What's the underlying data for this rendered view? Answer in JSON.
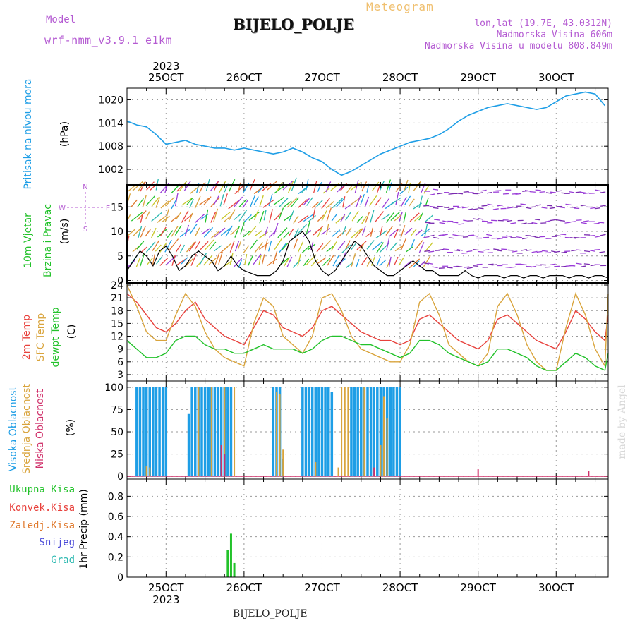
{
  "header": {
    "model_label": "Model",
    "model_name": "wrf-nmm_v3.9.1 e1km",
    "station": "BIJELO_POLJE",
    "meteogram": "Meteogram",
    "lonlat": "lon,lat (19.7E, 43.0312N)",
    "elevation": "Nadmorska Visina 606m",
    "model_elevation": "Nadmorska Visina u modelu 808.849m"
  },
  "footer": {
    "station": "BIJELO_POLJE",
    "credit": "made by Angel"
  },
  "colors": {
    "pressure": "#1e9ee6",
    "t2m": "#e8413c",
    "sfc": "#d9a43c",
    "dewpt": "#22c22a",
    "high_cloud": "#1e9ee6",
    "mid_cloud": "#d9a43c",
    "low_cloud": "#d0306a",
    "precip": "#22c22a",
    "wind_speed": "#000000",
    "label_purple": "#b45ad2"
  },
  "chart_data": [
    {
      "type": "line",
      "panel": "pressure",
      "ylabel_colored": "Pritisak na nivou mora",
      "ylabel_unit": "(hPa)",
      "x_ticks": [
        "25OCT",
        "26OCT",
        "27OCT",
        "28OCT",
        "29OCT",
        "30OCT"
      ],
      "x_top_year": "2023",
      "x_bottom_year": "2023",
      "x_range_hours": [
        -12,
        136
      ],
      "y_ticks": [
        1002,
        1008,
        1014,
        1020
      ],
      "ylim": [
        998,
        1023
      ],
      "series": [
        {
          "name": "",
          "x": [
            -12,
            -9,
            -6,
            -3,
            0,
            3,
            6,
            9,
            12,
            15,
            18,
            21,
            24,
            27,
            30,
            33,
            36,
            39,
            42,
            45,
            48,
            51,
            54,
            57,
            60,
            63,
            66,
            69,
            72,
            75,
            78,
            81,
            84,
            87,
            90,
            93,
            96,
            99,
            102,
            105,
            108,
            111,
            114,
            117,
            120,
            123,
            126,
            129,
            132,
            135
          ],
          "values": [
            1014.5,
            1013.5,
            1013,
            1011,
            1008.5,
            1009,
            1009.5,
            1008.5,
            1008,
            1007.5,
            1007.5,
            1007,
            1007.5,
            1007,
            1006.5,
            1006,
            1006.5,
            1007.5,
            1006.5,
            1005,
            1004,
            1002,
            1000.5,
            1001.5,
            1003,
            1004.5,
            1006,
            1007,
            1008,
            1009,
            1009.5,
            1010,
            1011,
            1012.5,
            1014.5,
            1016,
            1017,
            1018,
            1018.5,
            1019,
            1018.5,
            1018,
            1017.5,
            1018,
            1019.5,
            1021,
            1021.5,
            1022,
            1021.5,
            1018.5
          ]
        }
      ]
    },
    {
      "type": "line",
      "panel": "wind",
      "ylabel_colored_1": "10m Vjetar",
      "ylabel_colored_2": "Brzina i Pravac",
      "ylabel_unit": "(m/s)",
      "compass": [
        "N",
        "E",
        "S",
        "W"
      ],
      "y_ticks": [
        0,
        5,
        10,
        15
      ],
      "ylim": [
        -0.5,
        19.5
      ],
      "series": [
        {
          "name": "",
          "x": [
            -12,
            -10,
            -8,
            -6,
            -4,
            -2,
            0,
            2,
            4,
            6,
            8,
            10,
            12,
            14,
            16,
            18,
            20,
            22,
            24,
            26,
            28,
            30,
            32,
            34,
            36,
            38,
            40,
            42,
            44,
            46,
            48,
            50,
            52,
            54,
            56,
            58,
            60,
            62,
            64,
            66,
            68,
            70,
            72,
            74,
            76,
            78,
            80,
            82,
            84,
            86,
            88,
            90,
            92,
            94,
            96,
            98,
            100,
            102,
            104,
            106,
            108,
            110,
            112,
            114,
            116,
            118,
            120,
            122,
            124,
            126,
            128,
            130,
            132,
            134,
            136
          ],
          "values": [
            2,
            4,
            6,
            5,
            3,
            6,
            7,
            5,
            2,
            3,
            5,
            6,
            5,
            4,
            2,
            3,
            5,
            3,
            2,
            1.5,
            1,
            1,
            1,
            2,
            4,
            8,
            9,
            10,
            8,
            4,
            2,
            1,
            2,
            4,
            6,
            8,
            7,
            5,
            3,
            2,
            1,
            1,
            2,
            3,
            4,
            3,
            2,
            2,
            1,
            1,
            1,
            1,
            2,
            1,
            0.5,
            1,
            1,
            1,
            0.5,
            1,
            1,
            0.5,
            1,
            1,
            0.5,
            1,
            1,
            1,
            0.5,
            1,
            1,
            0.5,
            1,
            1,
            0.5
          ]
        }
      ]
    },
    {
      "type": "line",
      "panel": "temperature",
      "ylabel_1": "2m Temp",
      "ylabel_2": "SFC Temp",
      "ylabel_3": "dewpt Temp",
      "ylabel_unit": "(C)",
      "y_ticks": [
        3,
        6,
        9,
        12,
        15,
        18,
        21,
        24
      ],
      "ylim": [
        1.5,
        24.5
      ],
      "series": [
        {
          "name": "2m Temp",
          "x": [
            -12,
            -9,
            -6,
            -3,
            0,
            3,
            6,
            9,
            12,
            15,
            18,
            21,
            24,
            27,
            30,
            33,
            36,
            39,
            42,
            45,
            48,
            51,
            54,
            57,
            60,
            63,
            66,
            69,
            72,
            75,
            78,
            81,
            84,
            87,
            90,
            93,
            96,
            99,
            102,
            105,
            108,
            111,
            114,
            117,
            120,
            123,
            126,
            129,
            132,
            135,
            136
          ],
          "values": [
            22,
            20,
            17,
            14,
            13,
            15,
            18,
            20,
            16,
            14,
            12,
            11,
            10,
            14,
            18,
            17,
            14,
            13,
            12,
            14,
            18,
            19,
            17,
            15,
            13,
            12,
            11,
            11,
            10,
            11,
            16,
            17,
            15,
            13,
            11,
            10,
            9,
            11,
            16,
            17,
            15,
            13,
            11,
            10,
            9,
            13,
            18,
            16,
            13,
            11,
            17
          ]
        },
        {
          "name": "SFC Temp",
          "x": [
            -12,
            -9,
            -6,
            -3,
            0,
            3,
            6,
            9,
            12,
            15,
            18,
            21,
            24,
            27,
            30,
            33,
            36,
            39,
            42,
            45,
            48,
            51,
            54,
            57,
            60,
            63,
            66,
            69,
            72,
            75,
            78,
            81,
            84,
            87,
            90,
            93,
            96,
            99,
            102,
            105,
            108,
            111,
            114,
            117,
            120,
            123,
            126,
            129,
            132,
            135,
            136
          ],
          "values": [
            24,
            19,
            13,
            11,
            11,
            17,
            22,
            19,
            13,
            9,
            7,
            6,
            5,
            15,
            21,
            19,
            12,
            10,
            8,
            12,
            21,
            22,
            18,
            12,
            9,
            8,
            7,
            6,
            6,
            10,
            20,
            22,
            17,
            10,
            8,
            6,
            5,
            8,
            19,
            22,
            17,
            10,
            6,
            4,
            4,
            14,
            22,
            17,
            9,
            5,
            22
          ]
        },
        {
          "name": "dewpt Temp",
          "x": [
            -12,
            -9,
            -6,
            -3,
            0,
            3,
            6,
            9,
            12,
            15,
            18,
            21,
            24,
            27,
            30,
            33,
            36,
            39,
            42,
            45,
            48,
            51,
            54,
            57,
            60,
            63,
            66,
            69,
            72,
            75,
            78,
            81,
            84,
            87,
            90,
            93,
            96,
            99,
            102,
            105,
            108,
            111,
            114,
            117,
            120,
            123,
            126,
            129,
            132,
            135,
            136
          ],
          "values": [
            11,
            9,
            7,
            7,
            8,
            11,
            12,
            12,
            10,
            9,
            9,
            8,
            8,
            9,
            10,
            9,
            9,
            9,
            8,
            9,
            11,
            12,
            12,
            11,
            10,
            10,
            9,
            8,
            7,
            8,
            11,
            11,
            10,
            8,
            7,
            6,
            5,
            6,
            9,
            9,
            8,
            7,
            5,
            4,
            4,
            6,
            8,
            7,
            5,
            4,
            8
          ]
        }
      ]
    },
    {
      "type": "bar",
      "panel": "cloud",
      "ylabel_1": "Visoka Oblacnost",
      "ylabel_2": "Srednja Oblacnost",
      "ylabel_3": "Niska Oblacnost",
      "ylabel_unit": "(%)",
      "y_ticks": [
        0,
        25,
        50,
        75,
        100
      ],
      "ylim": [
        -3,
        107
      ],
      "series": [
        {
          "name": "Visoka Oblacnost",
          "x": [
            -9,
            -8,
            -7,
            -6,
            -5,
            -4,
            -3,
            -2,
            -1,
            0,
            7,
            8,
            9,
            10,
            11,
            12,
            13,
            14,
            15,
            16,
            17,
            18,
            19,
            20,
            22,
            23,
            24,
            33,
            34,
            35,
            36,
            42,
            43,
            44,
            45,
            46,
            47,
            48,
            49,
            50,
            51,
            52,
            57,
            58,
            59,
            60,
            61,
            62,
            63,
            64,
            65,
            66,
            67,
            68,
            69,
            70,
            71,
            72
          ],
          "values": [
            100,
            100,
            100,
            100,
            100,
            100,
            100,
            100,
            100,
            100,
            70,
            100,
            100,
            100,
            100,
            100,
            100,
            100,
            100,
            100,
            100,
            100,
            100,
            100,
            0,
            0,
            0,
            100,
            100,
            100,
            20,
            100,
            100,
            100,
            100,
            100,
            100,
            100,
            100,
            100,
            95,
            0,
            100,
            100,
            100,
            100,
            100,
            100,
            100,
            100,
            100,
            100,
            100,
            100,
            100,
            100,
            100,
            100
          ]
        },
        {
          "name": "Srednja Oblacnost",
          "x": [
            -6,
            -5,
            10,
            14,
            18,
            21,
            34,
            35,
            36,
            46,
            53,
            54,
            55,
            56,
            61,
            66,
            67,
            68
          ],
          "values": [
            12,
            10,
            100,
            100,
            100,
            100,
            95,
            92,
            30,
            16,
            10,
            100,
            100,
            100,
            100,
            35,
            90,
            65
          ]
        },
        {
          "name": "Niska Oblacnost",
          "x": [
            17,
            18,
            64,
            96,
            130
          ],
          "values": [
            35,
            25,
            10,
            8,
            6
          ]
        }
      ]
    },
    {
      "type": "bar",
      "panel": "precip",
      "legend": [
        "Ukupna Kisa",
        "Konvek.Kisa",
        "Zaledj.Kisa",
        "Snijeg",
        "Grad"
      ],
      "legend_colors": [
        "#22c22a",
        "#e8413c",
        "#e07a2e",
        "#4a4ad8",
        "#2ab8b0"
      ],
      "ylabel": "1hr Precip (mm)",
      "y_ticks": [
        0,
        0.2,
        0.4,
        0.6,
        0.8
      ],
      "ylim": [
        0,
        0.97
      ],
      "series": [
        {
          "name": "Ukupna Kisa",
          "x": [
            19,
            20,
            21
          ],
          "values": [
            0.27,
            0.43,
            0.14
          ]
        }
      ]
    }
  ]
}
